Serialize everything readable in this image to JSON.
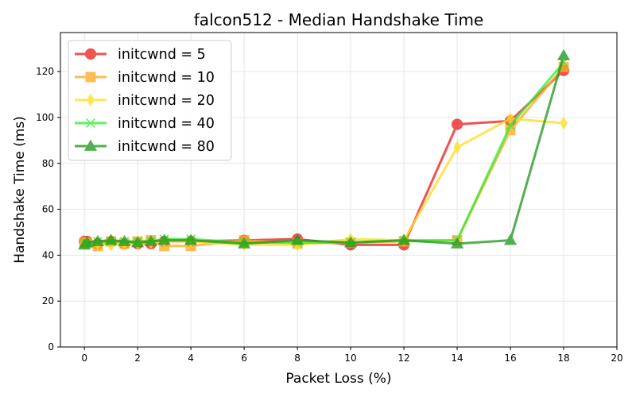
{
  "chart_data": {
    "type": "line",
    "title": "falcon512 - Median Handshake Time",
    "xlabel": "Packet Loss (%)",
    "ylabel": "Handshake Time (ms)",
    "xlim": [
      -0.9,
      20
    ],
    "ylim": [
      0,
      137
    ],
    "xticks": [
      0,
      2,
      4,
      6,
      8,
      10,
      12,
      14,
      16,
      18,
      20
    ],
    "yticks": [
      0,
      20,
      40,
      60,
      80,
      100,
      120
    ],
    "grid": true,
    "legend_position": "top-left",
    "series": [
      {
        "name": "initcwnd = 5",
        "color": "#ee2222",
        "marker": "circle",
        "x": [
          0,
          0.1,
          0.5,
          1,
          1.5,
          2,
          2.5,
          3,
          4,
          6,
          8,
          10,
          12,
          14,
          16,
          18
        ],
        "y": [
          46,
          46,
          45,
          46,
          45,
          45,
          45,
          46,
          46,
          46.5,
          47,
          44.5,
          44.5,
          97,
          98.5,
          120.5
        ]
      },
      {
        "name": "initcwnd = 10",
        "color": "#ffaa22",
        "marker": "square",
        "x": [
          0,
          0.1,
          0.5,
          1,
          1.5,
          2,
          2.5,
          3,
          4,
          6,
          8,
          10,
          12,
          14,
          16,
          18
        ],
        "y": [
          45.5,
          45.5,
          44,
          46,
          45,
          46,
          46.5,
          44,
          44,
          46.5,
          45,
          45.5,
          46,
          46.5,
          94.5,
          122
        ]
      },
      {
        "name": "initcwnd = 20",
        "color": "#ffdd22",
        "marker": "thin_diamond",
        "x": [
          0,
          0.1,
          0.5,
          1,
          1.5,
          2,
          2.5,
          3,
          4,
          6,
          8,
          10,
          12,
          14,
          16,
          18
        ],
        "y": [
          45,
          45,
          45,
          44.5,
          45,
          45,
          45.5,
          46,
          46,
          44.5,
          44.5,
          47,
          46.5,
          87,
          99.5,
          97.5
        ]
      },
      {
        "name": "initcwnd = 40",
        "color": "#33ee33",
        "marker": "x",
        "x": [
          0,
          0.1,
          0.5,
          1,
          1.5,
          2,
          2.5,
          3,
          4,
          6,
          8,
          10,
          12,
          14,
          16,
          18
        ],
        "y": [
          45,
          45,
          46,
          46,
          46,
          46,
          46,
          47,
          47,
          45.5,
          45.5,
          45.5,
          46.5,
          46.5,
          96.5,
          124
        ]
      },
      {
        "name": "initcwnd = 80",
        "color": "#229922",
        "marker": "triangle",
        "x": [
          0,
          0.1,
          0.5,
          1,
          1.5,
          2,
          2.5,
          3,
          4,
          6,
          8,
          10,
          12,
          14,
          16,
          18
        ],
        "y": [
          44.5,
          45.5,
          46,
          46.5,
          46,
          45.5,
          46,
          46.5,
          46.5,
          45,
          46.5,
          45.5,
          46.5,
          45,
          46.5,
          127
        ]
      }
    ]
  }
}
